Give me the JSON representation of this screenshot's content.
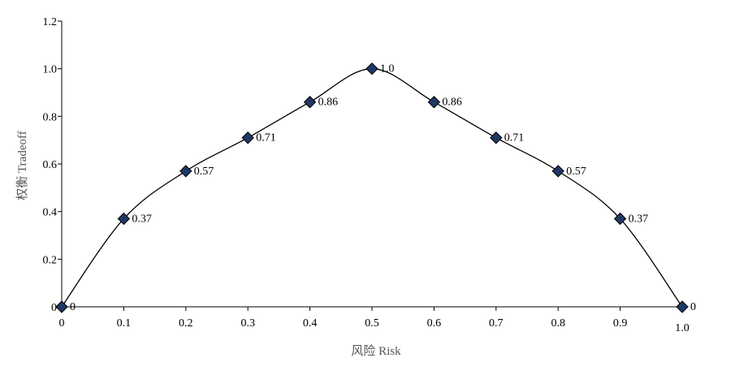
{
  "chart_data": {
    "type": "line",
    "title": "",
    "xlabel": "风险 Risk",
    "ylabel": "权衡 Tradeoff",
    "xlim": [
      0,
      1.0
    ],
    "ylim": [
      0,
      1.2
    ],
    "x_ticks": [
      "0",
      "0.1",
      "0.2",
      "0.3",
      "0.4",
      "0.5",
      "0.6",
      "0.7",
      "0.8",
      "0.9",
      "1.0"
    ],
    "y_ticks": [
      "0",
      "0.2",
      "0.4",
      "0.6",
      "0.8",
      "1.0",
      "1.2"
    ],
    "grid": false,
    "legend": "none",
    "marker": "diamond",
    "marker_color": "#1f3864",
    "line_color": "#000000",
    "series": [
      {
        "x": [
          0,
          0.1,
          0.2,
          0.3,
          0.4,
          0.5,
          0.6,
          0.7,
          0.8,
          0.9,
          1.0
        ],
        "values": [
          0,
          0.37,
          0.57,
          0.71,
          0.86,
          1.0,
          0.86,
          0.71,
          0.57,
          0.37,
          0
        ],
        "labels": [
          "0",
          "0.37",
          "0.57",
          "0.71",
          "0.86",
          "1.0",
          "0.86",
          "0.71",
          "0.57",
          "0.37",
          "0"
        ]
      }
    ]
  }
}
